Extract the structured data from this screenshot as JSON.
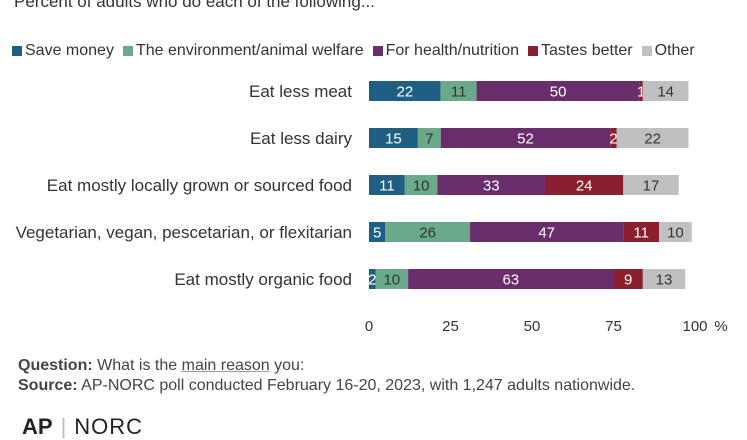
{
  "subtitle": "Percent of adults who do each of the following...",
  "notes": {
    "question_label": "Question:",
    "question_pre": "What is the",
    "question_link": "main reason",
    "question_post": "you:",
    "source_label": "Source:",
    "source_text": "AP-NORC poll conducted February 16-20, 2023, with 1,247 adults nationwide."
  },
  "logos": {
    "ap": "AP",
    "sep": "|",
    "norc": "NORC"
  },
  "chart_data": {
    "type": "bar",
    "orientation": "horizontal",
    "stacked": true,
    "title": "",
    "subtitle": "Percent of adults who do each of the following...",
    "xlabel": "",
    "ylabel": "",
    "xlim": [
      0,
      100
    ],
    "x_ticks": [
      "0",
      "25",
      "50",
      "75",
      "100"
    ],
    "x_unit": "%",
    "grid": false,
    "legend_position": "top",
    "categories": [
      "Eat less meat",
      "Eat  less dairy",
      "Eat mostly locally grown or sourced food",
      "Vegetarian, vegan, pescetarian, or flexitarian",
      "Eat mostly organic food"
    ],
    "series": [
      {
        "name": "Save money",
        "color": "#1f5f84",
        "label_color": "#ffffff",
        "values": [
          22,
          15,
          11,
          5,
          2
        ]
      },
      {
        "name": "The environment/animal welfare",
        "color": "#6aa989",
        "label_color": "#333333",
        "values": [
          11,
          7,
          10,
          26,
          10
        ]
      },
      {
        "name": "For health/nutrition",
        "color": "#6a2d6b",
        "label_color": "#ffffff",
        "values": [
          50,
          52,
          33,
          47,
          63
        ]
      },
      {
        "name": "Tastes better",
        "color": "#8a1f2f",
        "label_color": "#ffffff",
        "values": [
          1,
          2,
          24,
          11,
          9
        ]
      },
      {
        "name": "Other",
        "color": "#c0c0c0",
        "label_color": "#333333",
        "values": [
          14,
          22,
          17,
          10,
          13
        ]
      }
    ]
  }
}
